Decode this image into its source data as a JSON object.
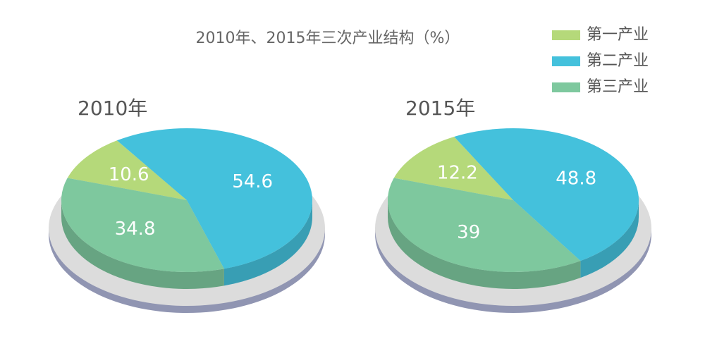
{
  "title": "2010年、2015年三次产业结构（%）",
  "chart_data": [
    {
      "type": "pie",
      "title": "2010年",
      "categories": [
        "第一产业",
        "第二产业",
        "第三产业"
      ],
      "values": [
        10.6,
        54.6,
        34.8
      ],
      "colors": [
        "#b5d97a",
        "#44c1dc",
        "#7ec89e"
      ]
    },
    {
      "type": "pie",
      "title": "2015年",
      "categories": [
        "第一产业",
        "第二产业",
        "第三产业"
      ],
      "values": [
        12.2,
        48.8,
        39
      ],
      "colors": [
        "#b5d97a",
        "#44c1dc",
        "#7ec89e"
      ]
    }
  ]
}
